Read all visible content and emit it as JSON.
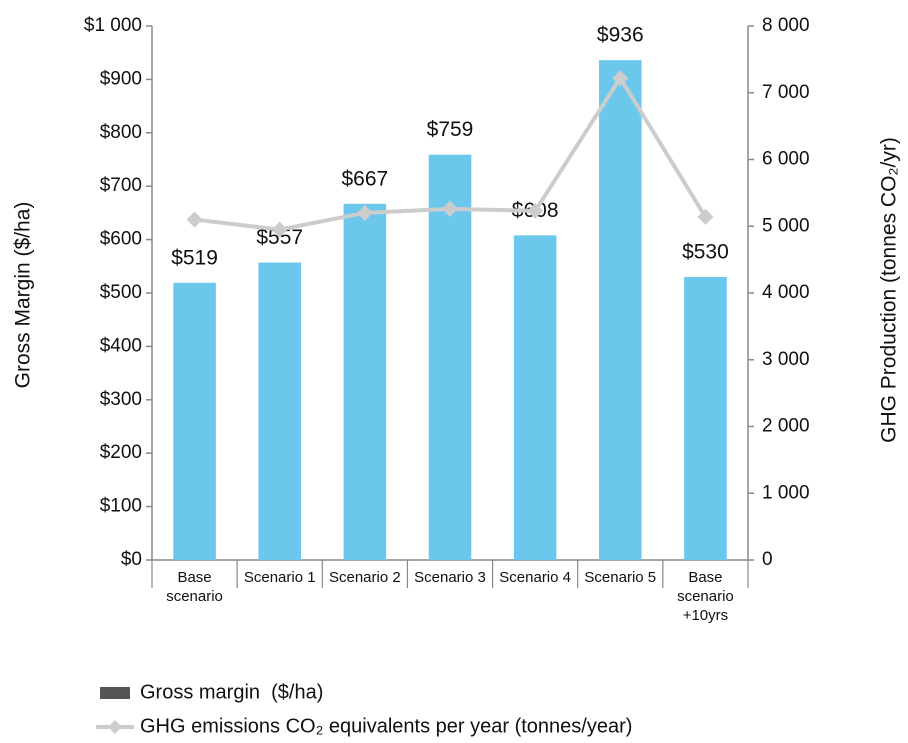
{
  "chart_data": {
    "type": "bar_line",
    "y_label": "Gross Margin ($/ha)",
    "y2_label": "GHG Production (tonnes CO₂/yr)",
    "categories": [
      "Base scenario",
      "Scenario 1",
      "Scenario 2",
      "Scenario 3",
      "Scenario 4",
      "Scenario 5",
      "Base scenario +10yrs"
    ],
    "series": [
      {
        "name": "Gross margin  ($/ha)",
        "type": "bar",
        "color": "#6bc8ec",
        "legend_color": "#555555",
        "values": [
          519,
          557,
          667,
          759,
          608,
          936,
          530
        ],
        "value_labels": [
          "$519",
          "$557",
          "$667",
          "$759",
          "$608",
          "$936",
          "$530"
        ]
      },
      {
        "name": "GHG emissions CO₂ equivalents per year (tonnes/year)",
        "type": "line",
        "axis": "y2",
        "color": "#cccccc",
        "values": [
          5100,
          4950,
          5200,
          5260,
          5230,
          7220,
          5140
        ]
      }
    ],
    "ylim": [
      0,
      1000
    ],
    "yticks": [
      {
        "value": 0,
        "label": "$0"
      },
      {
        "value": 100,
        "label": "$100"
      },
      {
        "value": 200,
        "label": "$200"
      },
      {
        "value": 300,
        "label": "$300"
      },
      {
        "value": 400,
        "label": "$400"
      },
      {
        "value": 500,
        "label": "$500"
      },
      {
        "value": 600,
        "label": "$600"
      },
      {
        "value": 700,
        "label": "$700"
      },
      {
        "value": 800,
        "label": "$800"
      },
      {
        "value": 900,
        "label": "$900"
      },
      {
        "value": 1000,
        "label": "$1 000"
      }
    ],
    "y2lim": [
      0,
      8000
    ],
    "y2ticks": [
      0,
      {
        "value": 1000,
        "label": "1 000"
      },
      {
        "value": 2000,
        "label": "2 000"
      },
      {
        "value": 3000,
        "label": "3 000"
      },
      {
        "value": 4000,
        "label": "4 000"
      },
      {
        "value": 5000,
        "label": "5 000"
      },
      {
        "value": 6000,
        "label": "6 000"
      },
      {
        "value": 7000,
        "label": "7 000"
      },
      {
        "value": 8000,
        "label": "8 000"
      }
    ],
    "grid": false
  }
}
